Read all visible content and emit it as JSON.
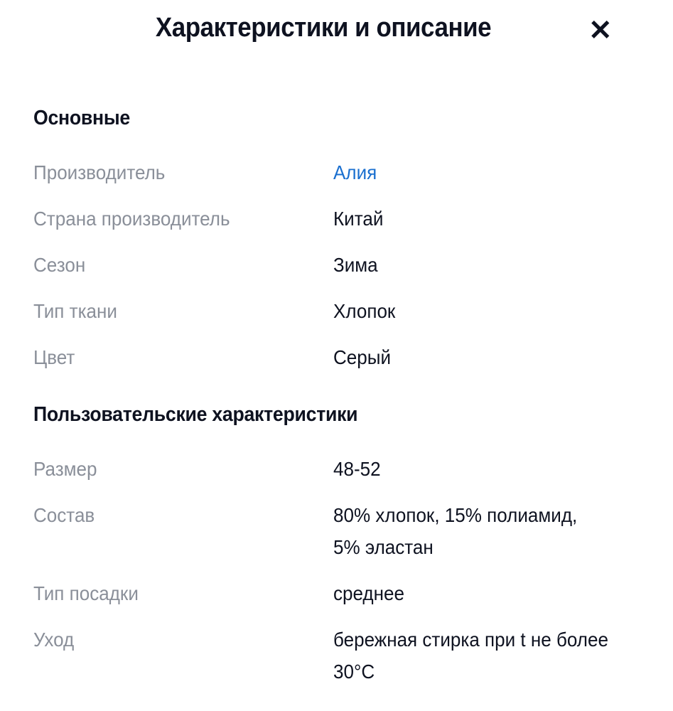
{
  "header": {
    "title": "Характеристики и описание",
    "close_icon": "close-icon"
  },
  "sections": [
    {
      "title": "Основные",
      "rows": [
        {
          "label": "Производитель",
          "value": "Алия",
          "link": true
        },
        {
          "label": "Страна производитель",
          "value": "Китай"
        },
        {
          "label": "Сезон",
          "value": "Зима"
        },
        {
          "label": "Тип ткани",
          "value": "Хлопок"
        },
        {
          "label": "Цвет",
          "value": "Серый"
        }
      ]
    },
    {
      "title": "Пользовательские характеристики",
      "rows": [
        {
          "label": "Размер",
          "value": "48-52"
        },
        {
          "label": "Состав",
          "value": "80% хлопок, 15% полиамид, 5% эластан"
        },
        {
          "label": "Тип посадки",
          "value": "среднее"
        },
        {
          "label": "Уход",
          "value": "бережная стирка при t не более 30°C"
        }
      ]
    }
  ],
  "colors": {
    "link": "#1a6fcf",
    "label": "#8a8f99",
    "text": "#0e1220"
  }
}
